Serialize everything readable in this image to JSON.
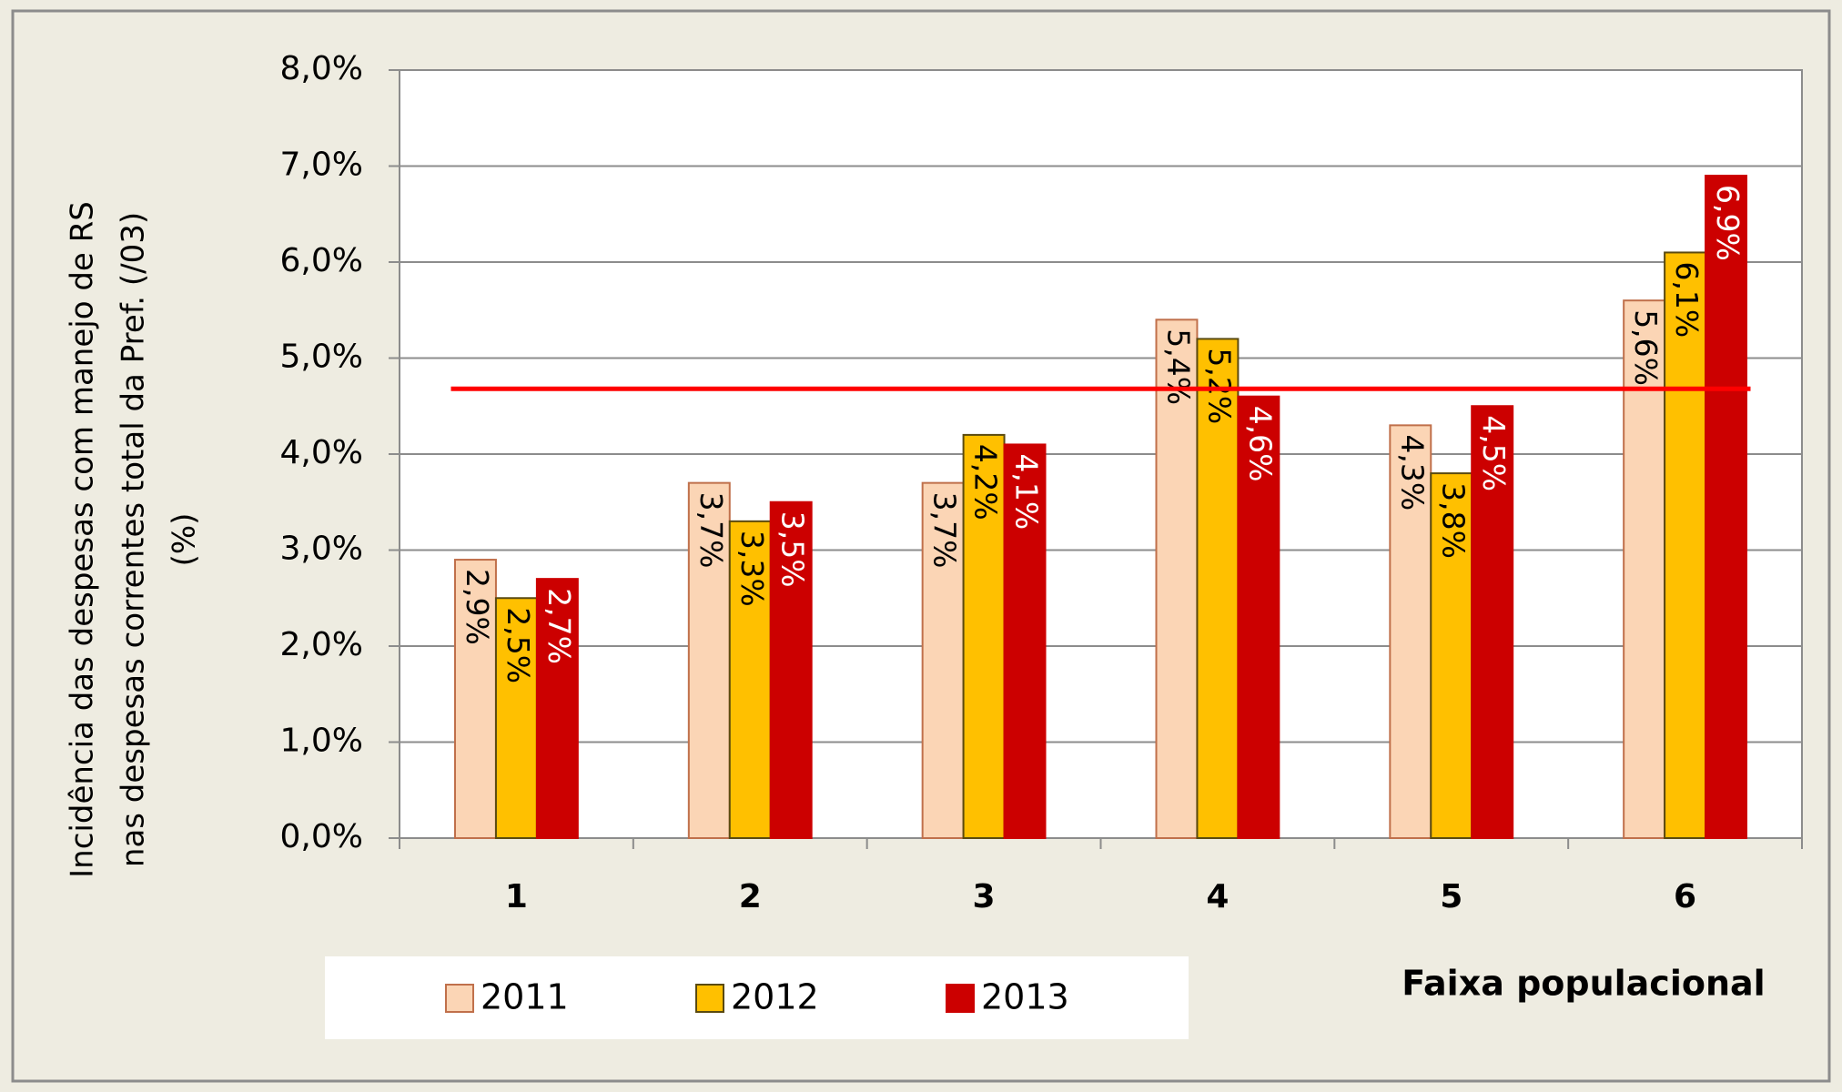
{
  "chart_data": {
    "type": "bar",
    "y_label": [
      "Incidência das despesas com manejo de RS",
      "nas despesas correntes total da Pref. (/03)",
      "(%)"
    ],
    "x_label": "Faixa populacional",
    "categories": [
      "1",
      "2",
      "3",
      "4",
      "5",
      "6"
    ],
    "series": [
      {
        "name": "2011",
        "color": "#fbd5b5",
        "edge": "#c0704b",
        "label_color": "#000000",
        "values": [
          2.9,
          3.7,
          3.7,
          5.4,
          4.3,
          5.6
        ],
        "value_labels": [
          "2,9%",
          "3,7%",
          "3,7%",
          "5,4%",
          "4,3%",
          "5,6%"
        ]
      },
      {
        "name": "2012",
        "color": "#ffc000",
        "edge": "#5a4a10",
        "label_color": "#000000",
        "values": [
          2.5,
          3.3,
          4.2,
          5.2,
          3.8,
          6.1
        ],
        "value_labels": [
          "2,5%",
          "3,3%",
          "4,2%",
          "5,2%",
          "3,8%",
          "6,1%"
        ]
      },
      {
        "name": "2013",
        "color": "#cc0000",
        "edge": "#cc0000",
        "label_color": "#ffffff",
        "values": [
          2.7,
          3.5,
          4.1,
          4.6,
          4.5,
          6.9
        ],
        "value_labels": [
          "2,7%",
          "3,5%",
          "4,1%",
          "4,6%",
          "4,5%",
          "6,9%"
        ]
      }
    ],
    "reference_line": {
      "value": 4.68,
      "color": "#ff0000"
    },
    "ylim": [
      0,
      8
    ],
    "yticks": [
      {
        "value": 0,
        "label": "0,0%"
      },
      {
        "value": 1,
        "label": "1,0%"
      },
      {
        "value": 2,
        "label": "2,0%"
      },
      {
        "value": 3,
        "label": "3,0%"
      },
      {
        "value": 4,
        "label": "4,0%"
      },
      {
        "value": 5,
        "label": "5,0%"
      },
      {
        "value": 6,
        "label": "6,0%"
      },
      {
        "value": 7,
        "label": "7,0%"
      },
      {
        "value": 8,
        "label": "8,0%"
      }
    ],
    "grid": true,
    "legend": "bottom"
  }
}
